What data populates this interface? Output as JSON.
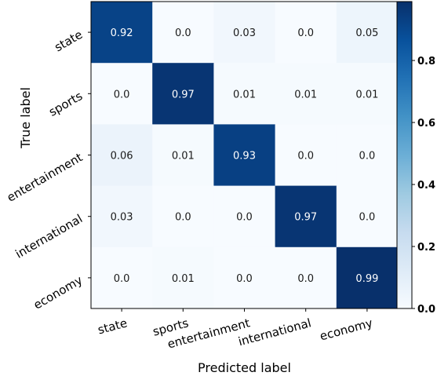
{
  "chart_data": {
    "type": "heatmap",
    "title": "",
    "xlabel": "Predicted label",
    "ylabel": "True label",
    "x_categories": [
      "state",
      "sports",
      "entertainment",
      "international",
      "economy"
    ],
    "y_categories": [
      "state",
      "sports",
      "entertainment",
      "international",
      "economy"
    ],
    "values": [
      [
        0.92,
        0.0,
        0.03,
        0.0,
        0.05
      ],
      [
        0.0,
        0.97,
        0.01,
        0.01,
        0.01
      ],
      [
        0.06,
        0.01,
        0.93,
        0.0,
        0.0
      ],
      [
        0.03,
        0.0,
        0.0,
        0.97,
        0.0
      ],
      [
        0.0,
        0.01,
        0.0,
        0.0,
        0.99
      ]
    ],
    "value_labels": [
      [
        "0.92",
        "0.0",
        "0.03",
        "0.0",
        "0.05"
      ],
      [
        "0.0",
        "0.97",
        "0.01",
        "0.01",
        "0.01"
      ],
      [
        "0.06",
        "0.01",
        "0.93",
        "0.0",
        "0.0"
      ],
      [
        "0.03",
        "0.0",
        "0.0",
        "0.97",
        "0.0"
      ],
      [
        "0.0",
        "0.01",
        "0.0",
        "0.0",
        "0.99"
      ]
    ],
    "colormap": "Blues",
    "colorbar": {
      "range": [
        0.0,
        0.99
      ],
      "ticks": [
        0.0,
        0.2,
        0.4,
        0.6,
        0.8
      ],
      "tick_labels": [
        "0.0",
        "0.2",
        "0.4",
        "0.6",
        "0.8"
      ]
    },
    "grid": false
  }
}
